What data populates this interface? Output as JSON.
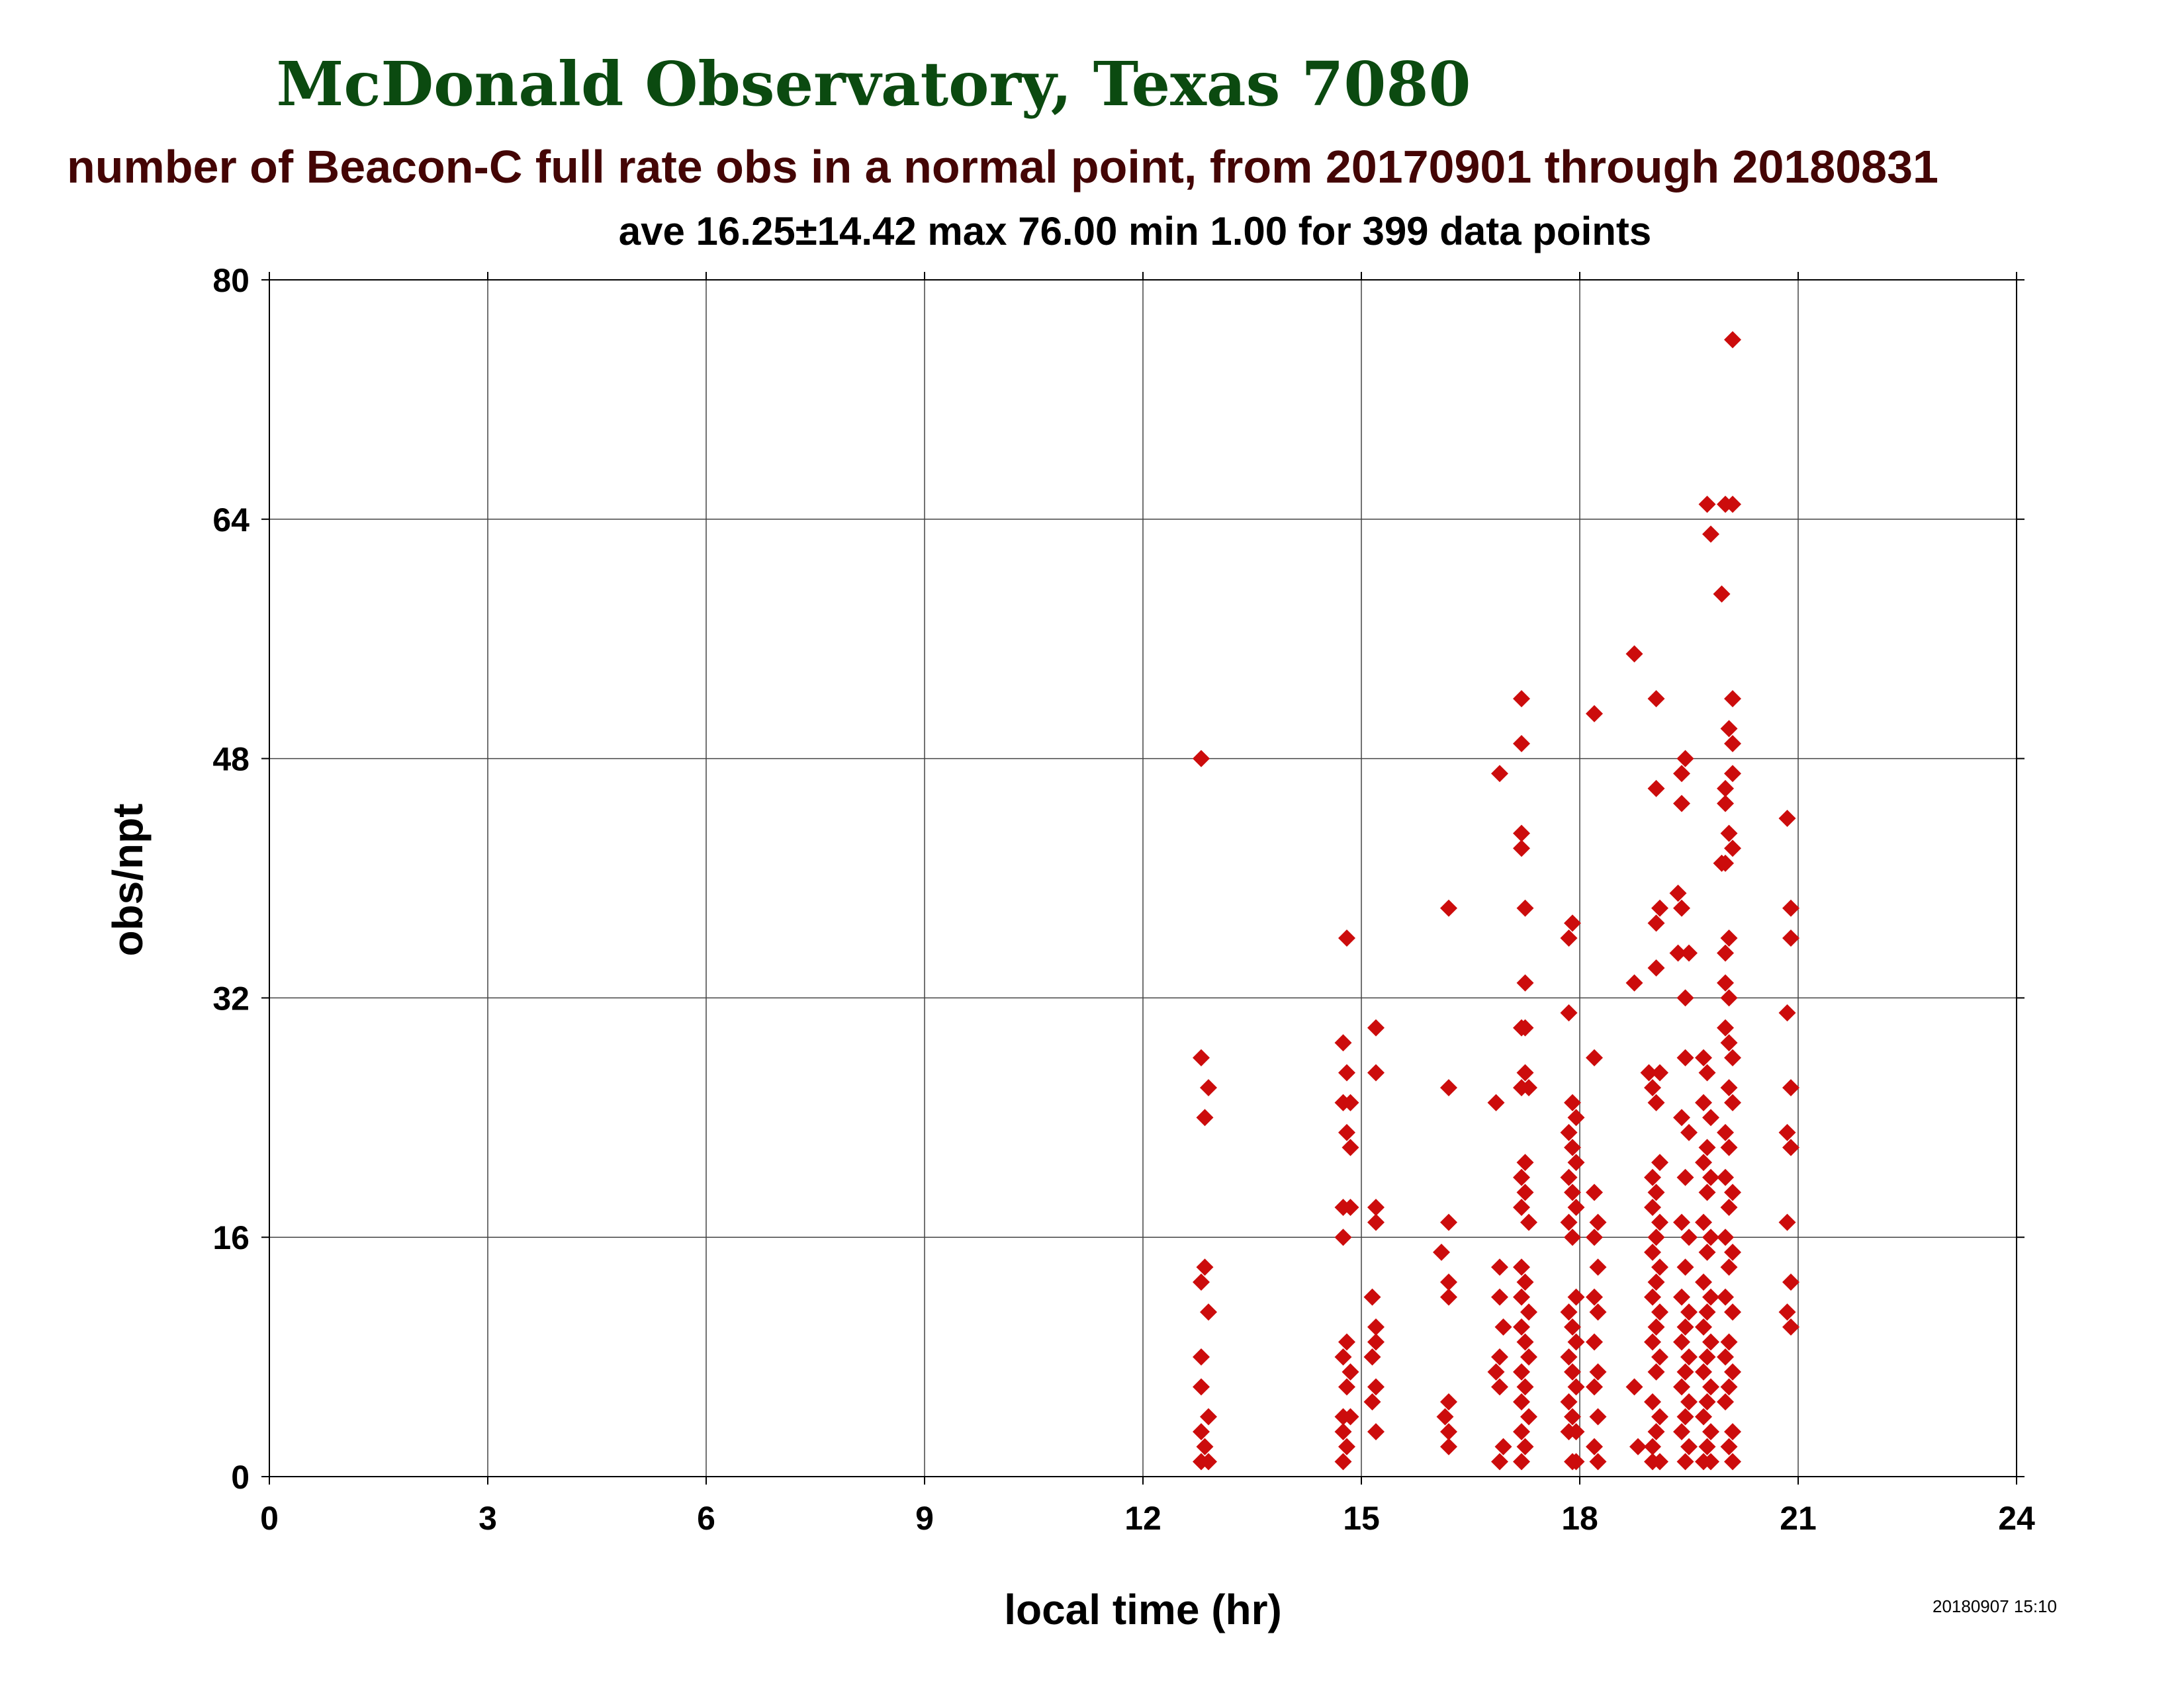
{
  "chart_data": {
    "type": "scatter",
    "title": "McDonald Observatory, Texas 7080",
    "subtitle": "number of Beacon-C full rate obs in a normal point, from 20170901 through 20180831",
    "stats_line": "ave 16.25±14.42 max 76.00 min 1.00 for 399 data points",
    "xlabel": "local time (hr)",
    "ylabel": "obs/npt",
    "xlim": [
      0,
      24
    ],
    "ylim": [
      0,
      80
    ],
    "x_ticks": [
      "0",
      "3",
      "6",
      "9",
      "12",
      "15",
      "18",
      "21",
      "24"
    ],
    "y_ticks": [
      "0",
      "16",
      "32",
      "48",
      "64",
      "80"
    ],
    "grid": true,
    "marker": "diamond",
    "marker_color": "#cc0c0c",
    "timestamp": "20180907 15:10",
    "series": [
      {
        "points": [
          [
            12.8,
            48
          ],
          [
            12.8,
            28
          ],
          [
            12.9,
            26
          ],
          [
            12.85,
            24
          ],
          [
            12.85,
            14
          ],
          [
            12.8,
            13
          ],
          [
            12.9,
            11
          ],
          [
            12.8,
            8
          ],
          [
            12.8,
            6
          ],
          [
            12.9,
            4
          ],
          [
            12.8,
            3
          ],
          [
            12.85,
            2
          ],
          [
            12.8,
            1
          ],
          [
            12.9,
            1
          ],
          [
            14.8,
            36
          ],
          [
            14.75,
            29
          ],
          [
            14.8,
            27
          ],
          [
            14.75,
            25
          ],
          [
            14.85,
            25
          ],
          [
            14.8,
            23
          ],
          [
            14.85,
            22
          ],
          [
            14.75,
            18
          ],
          [
            14.85,
            18
          ],
          [
            14.75,
            16
          ],
          [
            14.8,
            9
          ],
          [
            14.75,
            8
          ],
          [
            14.85,
            7
          ],
          [
            14.8,
            6
          ],
          [
            14.75,
            4
          ],
          [
            14.85,
            4
          ],
          [
            14.75,
            3
          ],
          [
            14.8,
            2
          ],
          [
            14.75,
            1
          ],
          [
            15.2,
            30
          ],
          [
            15.2,
            27
          ],
          [
            15.2,
            18
          ],
          [
            15.2,
            17
          ],
          [
            15.15,
            12
          ],
          [
            15.2,
            10
          ],
          [
            15.2,
            9
          ],
          [
            15.15,
            8
          ],
          [
            15.2,
            6
          ],
          [
            15.15,
            5
          ],
          [
            15.2,
            3
          ],
          [
            16.2,
            38
          ],
          [
            16.2,
            26
          ],
          [
            16.2,
            17
          ],
          [
            16.1,
            15
          ],
          [
            16.2,
            13
          ],
          [
            16.2,
            12
          ],
          [
            16.2,
            5
          ],
          [
            16.15,
            4
          ],
          [
            16.2,
            3
          ],
          [
            16.2,
            2
          ],
          [
            16.9,
            47
          ],
          [
            16.85,
            25
          ],
          [
            16.9,
            14
          ],
          [
            16.9,
            12
          ],
          [
            16.95,
            10
          ],
          [
            16.9,
            8
          ],
          [
            16.85,
            7
          ],
          [
            16.9,
            6
          ],
          [
            16.95,
            2
          ],
          [
            16.9,
            1
          ],
          [
            17.2,
            52
          ],
          [
            17.2,
            49
          ],
          [
            17.2,
            43
          ],
          [
            17.2,
            42
          ],
          [
            17.25,
            38
          ],
          [
            17.25,
            33
          ],
          [
            17.2,
            30
          ],
          [
            17.25,
            30
          ],
          [
            17.25,
            27
          ],
          [
            17.2,
            26
          ],
          [
            17.3,
            26
          ],
          [
            17.25,
            21
          ],
          [
            17.2,
            20
          ],
          [
            17.25,
            19
          ],
          [
            17.2,
            18
          ],
          [
            17.3,
            17
          ],
          [
            17.2,
            14
          ],
          [
            17.25,
            13
          ],
          [
            17.2,
            12
          ],
          [
            17.3,
            11
          ],
          [
            17.2,
            10
          ],
          [
            17.25,
            9
          ],
          [
            17.3,
            8
          ],
          [
            17.2,
            7
          ],
          [
            17.25,
            6
          ],
          [
            17.2,
            5
          ],
          [
            17.3,
            4
          ],
          [
            17.2,
            3
          ],
          [
            17.25,
            2
          ],
          [
            17.2,
            1
          ],
          [
            17.9,
            37
          ],
          [
            17.85,
            36
          ],
          [
            17.85,
            31
          ],
          [
            17.9,
            25
          ],
          [
            17.95,
            24
          ],
          [
            17.85,
            23
          ],
          [
            17.9,
            22
          ],
          [
            17.95,
            21
          ],
          [
            17.85,
            20
          ],
          [
            17.9,
            19
          ],
          [
            17.95,
            18
          ],
          [
            17.85,
            17
          ],
          [
            17.9,
            16
          ],
          [
            17.95,
            12
          ],
          [
            17.85,
            11
          ],
          [
            17.9,
            10
          ],
          [
            17.95,
            9
          ],
          [
            17.85,
            8
          ],
          [
            17.9,
            7
          ],
          [
            17.95,
            6
          ],
          [
            17.85,
            5
          ],
          [
            17.9,
            4
          ],
          [
            17.95,
            3
          ],
          [
            17.85,
            3
          ],
          [
            17.9,
            1
          ],
          [
            17.95,
            1
          ],
          [
            18.2,
            51
          ],
          [
            18.2,
            28
          ],
          [
            18.2,
            19
          ],
          [
            18.25,
            17
          ],
          [
            18.2,
            16
          ],
          [
            18.25,
            14
          ],
          [
            18.2,
            12
          ],
          [
            18.25,
            11
          ],
          [
            18.2,
            9
          ],
          [
            18.25,
            7
          ],
          [
            18.2,
            6
          ],
          [
            18.25,
            4
          ],
          [
            18.2,
            2
          ],
          [
            18.25,
            1
          ],
          [
            18.75,
            55
          ],
          [
            18.75,
            33
          ],
          [
            18.75,
            6
          ],
          [
            18.8,
            2
          ],
          [
            19.05,
            52
          ],
          [
            19.05,
            46
          ],
          [
            19.1,
            38
          ],
          [
            19.05,
            37
          ],
          [
            19.05,
            34
          ],
          [
            19.1,
            27
          ],
          [
            19.0,
            26
          ],
          [
            18.95,
            27
          ],
          [
            19.05,
            25
          ],
          [
            19.1,
            21
          ],
          [
            19.0,
            20
          ],
          [
            19.05,
            19
          ],
          [
            19.0,
            18
          ],
          [
            19.1,
            17
          ],
          [
            19.05,
            16
          ],
          [
            19.0,
            15
          ],
          [
            19.1,
            14
          ],
          [
            19.05,
            13
          ],
          [
            19.0,
            12
          ],
          [
            19.1,
            11
          ],
          [
            19.05,
            10
          ],
          [
            19.0,
            9
          ],
          [
            19.1,
            8
          ],
          [
            19.05,
            7
          ],
          [
            19.0,
            5
          ],
          [
            19.1,
            4
          ],
          [
            19.05,
            3
          ],
          [
            19.0,
            2
          ],
          [
            19.1,
            1
          ],
          [
            19.0,
            1
          ],
          [
            19.35,
            39
          ],
          [
            19.4,
            38
          ],
          [
            19.35,
            35
          ],
          [
            19.45,
            48
          ],
          [
            19.4,
            47
          ],
          [
            19.4,
            45
          ],
          [
            19.5,
            35
          ],
          [
            19.45,
            32
          ],
          [
            19.45,
            28
          ],
          [
            19.4,
            24
          ],
          [
            19.5,
            23
          ],
          [
            19.45,
            20
          ],
          [
            19.4,
            17
          ],
          [
            19.5,
            16
          ],
          [
            19.45,
            14
          ],
          [
            19.4,
            12
          ],
          [
            19.5,
            11
          ],
          [
            19.45,
            10
          ],
          [
            19.4,
            9
          ],
          [
            19.5,
            8
          ],
          [
            19.45,
            7
          ],
          [
            19.4,
            6
          ],
          [
            19.5,
            5
          ],
          [
            19.45,
            4
          ],
          [
            19.4,
            3
          ],
          [
            19.5,
            2
          ],
          [
            19.45,
            1
          ],
          [
            19.75,
            65
          ],
          [
            19.8,
            63
          ],
          [
            19.7,
            28
          ],
          [
            19.75,
            27
          ],
          [
            19.7,
            25
          ],
          [
            19.8,
            24
          ],
          [
            19.75,
            22
          ],
          [
            19.7,
            21
          ],
          [
            19.8,
            20
          ],
          [
            19.75,
            19
          ],
          [
            19.7,
            17
          ],
          [
            19.8,
            16
          ],
          [
            19.75,
            15
          ],
          [
            19.7,
            13
          ],
          [
            19.8,
            12
          ],
          [
            19.75,
            11
          ],
          [
            19.7,
            10
          ],
          [
            19.8,
            9
          ],
          [
            19.75,
            8
          ],
          [
            19.7,
            7
          ],
          [
            19.8,
            6
          ],
          [
            19.75,
            5
          ],
          [
            19.7,
            4
          ],
          [
            19.8,
            3
          ],
          [
            19.75,
            2
          ],
          [
            19.7,
            1
          ],
          [
            19.8,
            1
          ],
          [
            20.1,
            76
          ],
          [
            20.0,
            65
          ],
          [
            20.1,
            65
          ],
          [
            19.95,
            59
          ],
          [
            20.1,
            52
          ],
          [
            20.05,
            50
          ],
          [
            20.1,
            49
          ],
          [
            20.1,
            47
          ],
          [
            20.0,
            46
          ],
          [
            20.0,
            45
          ],
          [
            20.05,
            43
          ],
          [
            20.1,
            42
          ],
          [
            20.0,
            41
          ],
          [
            19.95,
            41
          ],
          [
            20.05,
            36
          ],
          [
            20.0,
            35
          ],
          [
            20.0,
            33
          ],
          [
            20.05,
            32
          ],
          [
            20.0,
            30
          ],
          [
            20.05,
            29
          ],
          [
            20.1,
            28
          ],
          [
            20.05,
            26
          ],
          [
            20.1,
            25
          ],
          [
            20.0,
            23
          ],
          [
            20.05,
            22
          ],
          [
            20.0,
            20
          ],
          [
            20.1,
            19
          ],
          [
            20.05,
            18
          ],
          [
            20.0,
            16
          ],
          [
            20.1,
            15
          ],
          [
            20.05,
            14
          ],
          [
            20.0,
            12
          ],
          [
            20.1,
            11
          ],
          [
            20.05,
            9
          ],
          [
            20.0,
            8
          ],
          [
            20.1,
            7
          ],
          [
            20.05,
            6
          ],
          [
            20.0,
            5
          ],
          [
            20.1,
            3
          ],
          [
            20.05,
            2
          ],
          [
            20.1,
            1
          ],
          [
            20.85,
            44
          ],
          [
            20.9,
            38
          ],
          [
            20.9,
            36
          ],
          [
            20.85,
            31
          ],
          [
            20.9,
            26
          ],
          [
            20.85,
            23
          ],
          [
            20.9,
            22
          ],
          [
            20.85,
            17
          ],
          [
            20.9,
            13
          ],
          [
            20.85,
            11
          ],
          [
            20.9,
            10
          ]
        ]
      }
    ]
  }
}
